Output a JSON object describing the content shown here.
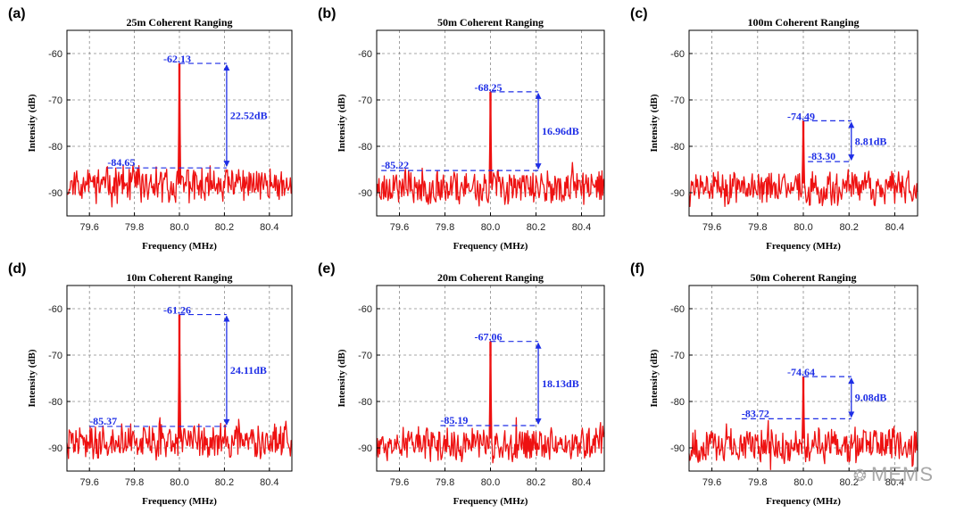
{
  "chart_data": [
    {
      "type": "line",
      "label": "(a)",
      "title": "25m Coherent Ranging",
      "xlabel": "Frequency (MHz)",
      "ylabel": "Intensity (dB)",
      "xlim": [
        79.5,
        80.5
      ],
      "ylim": [
        -95,
        -55
      ],
      "xticks": [
        "79.6",
        "79.8",
        "80.0",
        "80.2",
        "80.4"
      ],
      "yticks": [
        "-60",
        "-70",
        "-80",
        "-90"
      ],
      "peak": {
        "x": 80.0,
        "y": -62.13,
        "label": "-62.13"
      },
      "floor": {
        "y": -84.65,
        "label": "-84.65",
        "x_start": 79.68
      },
      "diff": {
        "label": "22.52dB"
      },
      "noise_mean": -88.2,
      "seed": 11
    },
    {
      "type": "line",
      "label": "(b)",
      "title": "50m Coherent Ranging",
      "xlabel": "Frequency (MHz)",
      "ylabel": "Intensity (dB)",
      "xlim": [
        79.5,
        80.5
      ],
      "ylim": [
        -95,
        -55
      ],
      "xticks": [
        "79.6",
        "79.8",
        "80.0",
        "80.2",
        "80.4"
      ],
      "yticks": [
        "-60",
        "-70",
        "-80",
        "-90"
      ],
      "peak": {
        "x": 80.0,
        "y": -68.25,
        "label": "-68.25"
      },
      "floor": {
        "y": -85.22,
        "label": "-85.22",
        "x_start": 79.52
      },
      "diff": {
        "label": "16.96dB"
      },
      "noise_mean": -88.8,
      "seed": 23
    },
    {
      "type": "line",
      "label": "(c)",
      "title": "100m Coherent Ranging",
      "xlabel": "Frequency (MHz)",
      "ylabel": "Intensity (dB)",
      "xlim": [
        79.5,
        80.5
      ],
      "ylim": [
        -95,
        -55
      ],
      "xticks": [
        "79.6",
        "79.8",
        "80.0",
        "80.2",
        "80.4"
      ],
      "yticks": [
        "-60",
        "-70",
        "-80",
        "-90"
      ],
      "peak": {
        "x": 80.0,
        "y": -74.49,
        "label": "-74.49"
      },
      "floor": {
        "y": -83.3,
        "label": "-83.30",
        "x_start": 80.02
      },
      "diff": {
        "label": "8.81dB"
      },
      "noise_mean": -89.0,
      "seed": 37
    },
    {
      "type": "line",
      "label": "(d)",
      "title": "10m Coherent Ranging",
      "xlabel": "Frequency (MHz)",
      "ylabel": "Intensity (dB)",
      "xlim": [
        79.5,
        80.5
      ],
      "ylim": [
        -95,
        -55
      ],
      "xticks": [
        "79.6",
        "79.8",
        "80.0",
        "80.2",
        "80.4"
      ],
      "yticks": [
        "-60",
        "-70",
        "-80",
        "-90"
      ],
      "peak": {
        "x": 80.0,
        "y": -61.26,
        "label": "-61.26"
      },
      "floor": {
        "y": -85.37,
        "label": "-85.37",
        "x_start": 79.6
      },
      "diff": {
        "label": "24.11dB"
      },
      "noise_mean": -88.6,
      "seed": 41
    },
    {
      "type": "line",
      "label": "(e)",
      "title": "20m Coherent Ranging",
      "xlabel": "Frequency (MHz)",
      "ylabel": "Intensity (dB)",
      "xlim": [
        79.5,
        80.5
      ],
      "ylim": [
        -95,
        -55
      ],
      "xticks": [
        "79.6",
        "79.8",
        "80.0",
        "80.2",
        "80.4"
      ],
      "yticks": [
        "-60",
        "-70",
        "-80",
        "-90"
      ],
      "peak": {
        "x": 80.0,
        "y": -67.06,
        "label": "-67.06"
      },
      "floor": {
        "y": -85.19,
        "label": "-85.19",
        "x_start": 79.78
      },
      "diff": {
        "label": "18.13dB"
      },
      "noise_mean": -89.3,
      "seed": 53
    },
    {
      "type": "line",
      "label": "(f)",
      "title": "50m Coherent Ranging",
      "xlabel": "Frequency (MHz)",
      "ylabel": "Intensity (dB)",
      "xlim": [
        79.5,
        80.5
      ],
      "ylim": [
        -95,
        -55
      ],
      "xticks": [
        "79.6",
        "79.8",
        "80.0",
        "80.2",
        "80.4"
      ],
      "yticks": [
        "-60",
        "-70",
        "-80",
        "-90"
      ],
      "peak": {
        "x": 80.0,
        "y": -74.64,
        "label": "-74.64"
      },
      "floor": {
        "y": -83.72,
        "label": "-83.72",
        "x_start": 79.73
      },
      "diff": {
        "label": "9.08dB"
      },
      "noise_mean": -89.4,
      "seed": 67
    }
  ],
  "colors": {
    "signal": "#ee1111",
    "annotation": "#1e2ee6",
    "grid": "#8a8a8a"
  },
  "watermark": {
    "icon": "wechat-icon",
    "text": "MEMS"
  }
}
